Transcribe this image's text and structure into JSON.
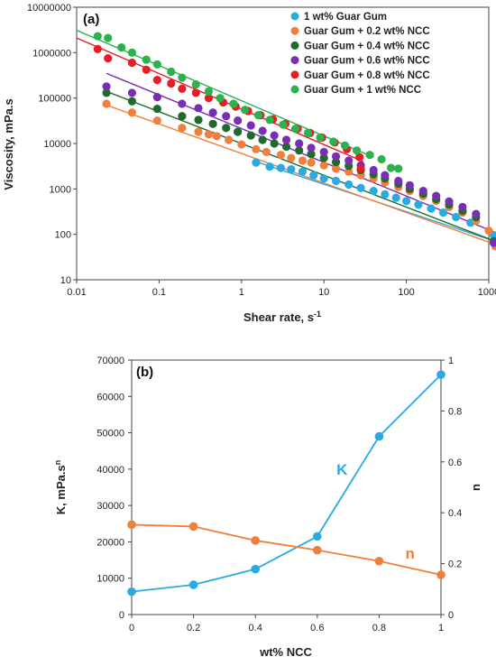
{
  "chart_data": [
    {
      "type": "scatter",
      "panel_label": "(a)",
      "xlabel": "Shear rate, s",
      "xlabel_sup": "-1",
      "ylabel": "Viscosity, mPa.s",
      "xscale": "log",
      "yscale": "log",
      "xlim": [
        0.01,
        1000
      ],
      "ylim": [
        10,
        10000000
      ],
      "xtick_labels": [
        "0.01",
        "0.1",
        "1",
        "10",
        "100",
        "1000"
      ],
      "xtick_values": [
        0.01,
        0.1,
        1,
        10,
        100,
        1000
      ],
      "ytick_labels": [
        "10",
        "100",
        "1000",
        "10000",
        "100000",
        "1000000",
        "10000000"
      ],
      "ytick_values": [
        10,
        100,
        1000,
        10000,
        100000,
        1000000,
        10000000
      ],
      "legend_position": "top-right",
      "series": [
        {
          "name": "1 wt% Guar Gum",
          "color": "#29ABE2",
          "points": [
            [
              1.5,
              3800
            ],
            [
              2.2,
              3100
            ],
            [
              3,
              2900
            ],
            [
              4,
              2700
            ],
            [
              5.5,
              2400
            ],
            [
              7.5,
              2000
            ],
            [
              10,
              1700
            ],
            [
              14,
              1500
            ],
            [
              20,
              1250
            ],
            [
              28,
              1050
            ],
            [
              40,
              900
            ],
            [
              55,
              760
            ],
            [
              75,
              640
            ],
            [
              100,
              540
            ],
            [
              140,
              450
            ],
            [
              200,
              370
            ],
            [
              280,
              300
            ],
            [
              400,
              240
            ],
            [
              600,
              180
            ],
            [
              1150,
              95
            ]
          ],
          "fit": [
            [
              1.5,
              4000
            ],
            [
              1200,
              70
            ]
          ]
        },
        {
          "name": "Guar Gum + 0.2 wt% NCC",
          "color": "#F07F3C",
          "points": [
            [
              0.023,
              75000
            ],
            [
              0.047,
              48000
            ],
            [
              0.095,
              32000
            ],
            [
              0.19,
              22000
            ],
            [
              0.3,
              18000
            ],
            [
              0.4,
              16000
            ],
            [
              0.5,
              14500
            ],
            [
              0.7,
              12000
            ],
            [
              1,
              9500
            ],
            [
              1.5,
              7500
            ],
            [
              2,
              6500
            ],
            [
              3,
              5600
            ],
            [
              4,
              4800
            ],
            [
              5.5,
              4200
            ],
            [
              7,
              3800
            ],
            [
              10,
              3300
            ],
            [
              14,
              2800
            ],
            [
              20,
              2400
            ],
            [
              28,
              2000
            ],
            [
              40,
              1700
            ],
            [
              55,
              1400
            ],
            [
              80,
              1100
            ],
            [
              110,
              900
            ],
            [
              160,
              700
            ],
            [
              230,
              540
            ],
            [
              330,
              400
            ],
            [
              480,
              300
            ],
            [
              700,
              200
            ],
            [
              1000,
              120
            ],
            [
              1200,
              55
            ]
          ],
          "fit": [
            [
              0.023,
              70000
            ],
            [
              1200,
              60
            ]
          ]
        },
        {
          "name": "Guar Gum + 0.4 wt% NCC",
          "color": "#1E6B2B",
          "points": [
            [
              0.023,
              130000
            ],
            [
              0.047,
              85000
            ],
            [
              0.095,
              58000
            ],
            [
              0.19,
              40000
            ],
            [
              0.3,
              33000
            ],
            [
              0.45,
              27000
            ],
            [
              0.65,
              22000
            ],
            [
              0.9,
              18000
            ],
            [
              1.3,
              15000
            ],
            [
              1.8,
              12000
            ],
            [
              2.5,
              10000
            ],
            [
              3.5,
              8500
            ],
            [
              5,
              7000
            ],
            [
              7,
              5800
            ],
            [
              10,
              4800
            ],
            [
              14,
              3900
            ],
            [
              20,
              3200
            ],
            [
              28,
              2600
            ],
            [
              40,
              2100
            ],
            [
              55,
              1700
            ],
            [
              80,
              1300
            ],
            [
              110,
              1000
            ],
            [
              160,
              780
            ],
            [
              230,
              600
            ],
            [
              330,
              450
            ],
            [
              480,
              330
            ],
            [
              700,
              240
            ],
            [
              1150,
              70
            ]
          ],
          "fit": [
            [
              0.023,
              140000
            ],
            [
              1200,
              70
            ]
          ]
        },
        {
          "name": "Guar Gum + 0.6 wt% NCC",
          "color": "#7A2FB3",
          "points": [
            [
              0.023,
              180000
            ],
            [
              0.047,
              130000
            ],
            [
              0.095,
              105000
            ],
            [
              0.19,
              75000
            ],
            [
              0.3,
              60000
            ],
            [
              0.45,
              48000
            ],
            [
              0.65,
              40000
            ],
            [
              0.9,
              32000
            ],
            [
              1.3,
              25000
            ],
            [
              1.8,
              19000
            ],
            [
              2.5,
              15000
            ],
            [
              3.5,
              12000
            ],
            [
              5,
              10000
            ],
            [
              7,
              8000
            ],
            [
              10,
              6500
            ],
            [
              14,
              5200
            ],
            [
              20,
              4200
            ],
            [
              28,
              3300
            ],
            [
              40,
              2600
            ],
            [
              55,
              2000
            ],
            [
              80,
              1500
            ],
            [
              110,
              1200
            ],
            [
              160,
              900
            ],
            [
              230,
              700
            ],
            [
              330,
              530
            ],
            [
              480,
              400
            ],
            [
              700,
              280
            ],
            [
              1150,
              65
            ]
          ],
          "fit": [
            [
              0.023,
              350000
            ],
            [
              1200,
              110
            ]
          ]
        },
        {
          "name": "Guar Gum + 0.8 wt% NCC",
          "color": "#E51E25",
          "points": [
            [
              0.018,
              1200000
            ],
            [
              0.024,
              750000
            ],
            [
              0.047,
              600000
            ],
            [
              0.07,
              420000
            ],
            [
              0.095,
              250000
            ],
            [
              0.14,
              210000
            ],
            [
              0.19,
              160000
            ],
            [
              0.28,
              130000
            ],
            [
              0.4,
              100000
            ],
            [
              0.6,
              80000
            ],
            [
              0.85,
              65000
            ],
            [
              1.2,
              52000
            ],
            [
              1.7,
              42000
            ],
            [
              2.4,
              34000
            ],
            [
              3.4,
              27000
            ],
            [
              4.8,
              21000
            ],
            [
              6.8,
              17000
            ],
            [
              9.5,
              13500
            ],
            [
              13.5,
              10500
            ],
            [
              19,
              7500
            ],
            [
              27,
              5000
            ],
            [
              28,
              2800
            ]
          ],
          "fit": [
            [
              0.01,
              2100000
            ],
            [
              30,
              4000
            ]
          ]
        },
        {
          "name": "Guar Gum + 1 wt% NCC",
          "color": "#2BB24C",
          "points": [
            [
              0.018,
              2300000
            ],
            [
              0.024,
              2100000
            ],
            [
              0.035,
              1300000
            ],
            [
              0.047,
              1000000
            ],
            [
              0.07,
              700000
            ],
            [
              0.095,
              550000
            ],
            [
              0.14,
              380000
            ],
            [
              0.19,
              280000
            ],
            [
              0.28,
              200000
            ],
            [
              0.4,
              140000
            ],
            [
              0.55,
              100000
            ],
            [
              0.8,
              75000
            ],
            [
              1.1,
              55000
            ],
            [
              1.6,
              42000
            ],
            [
              2.2,
              33000
            ],
            [
              3.2,
              26000
            ],
            [
              4.5,
              21000
            ],
            [
              6.4,
              17000
            ],
            [
              9,
              13500
            ],
            [
              13,
              11000
            ],
            [
              18,
              9000
            ],
            [
              25,
              7000
            ],
            [
              36,
              5600
            ],
            [
              50,
              4500
            ],
            [
              65,
              2900
            ],
            [
              80,
              2800
            ]
          ],
          "fit": [
            [
              0.01,
              3100000
            ],
            [
              40,
              5000
            ]
          ]
        }
      ]
    },
    {
      "type": "line",
      "panel_label": "(b)",
      "xlabel": "wt% NCC",
      "ylabel": "K, mPa.s",
      "ylabel_sup": "n",
      "y2label": "n",
      "x": [
        0,
        0.2,
        0.4,
        0.6,
        0.8,
        1
      ],
      "xlim": [
        0,
        1
      ],
      "ylim": [
        0,
        70000
      ],
      "y2lim": [
        0,
        1
      ],
      "xtick_labels": [
        "0",
        "0.2",
        "0.4",
        "0.6",
        "0.8",
        "1"
      ],
      "ytick_labels": [
        "0",
        "10000",
        "20000",
        "30000",
        "40000",
        "50000",
        "60000",
        "70000"
      ],
      "y2tick_labels": [
        "0",
        "0.2",
        "0.4",
        "0.6",
        "0.8",
        "1"
      ],
      "series": [
        {
          "name": "K",
          "axis": "left",
          "color": "#29ABE2",
          "values": [
            6300,
            8200,
            12500,
            21500,
            49000,
            66000
          ]
        },
        {
          "name": "n",
          "axis": "right",
          "color": "#F07F3C",
          "values": [
            0.353,
            0.346,
            0.291,
            0.253,
            0.21,
            0.156
          ]
        }
      ],
      "annotations": [
        {
          "text": "K",
          "color": "#29ABE2",
          "x": 0.68,
          "y": 0.55,
          "axis": "right"
        },
        {
          "text": "n",
          "color": "#F07F3C",
          "x": 0.9,
          "y": 0.22,
          "axis": "right"
        }
      ]
    }
  ]
}
